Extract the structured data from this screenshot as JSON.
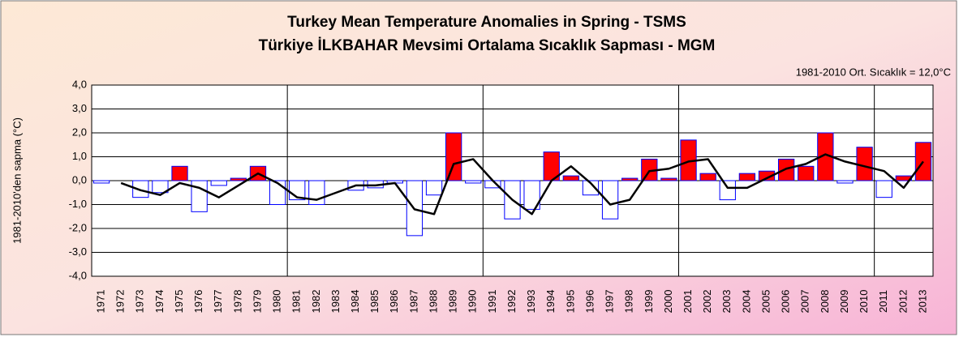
{
  "chart_data": {
    "type": "bar",
    "title": "Turkey Mean Temperature Anomalies in Spring - TSMS",
    "subtitle": "Türkiye İLKBAHAR Mevsimi Ortalama Sıcaklık Sapması - MGM",
    "annotation": "1981-2010 Ort. Sıcaklık = 12,0°C",
    "y_label": "1981-2010'den sapma (°C)",
    "categories": [
      "1971",
      "1972",
      "1973",
      "1974",
      "1975",
      "1976",
      "1977",
      "1978",
      "1979",
      "1980",
      "1981",
      "1982",
      "1983",
      "1984",
      "1985",
      "1986",
      "1987",
      "1988",
      "1989",
      "1990",
      "1991",
      "1992",
      "1993",
      "1994",
      "1995",
      "1996",
      "1997",
      "1998",
      "1999",
      "2000",
      "2001",
      "2002",
      "2003",
      "2004",
      "2005",
      "2006",
      "2007",
      "2008",
      "2009",
      "2010",
      "2011",
      "2012",
      "2013"
    ],
    "series": [
      {
        "type": "bar",
        "positive_color": "#ff0000",
        "negative_color": "#ffffff",
        "edge_color": "#0000ff",
        "values": [
          -0.1,
          0.0,
          -0.7,
          -0.5,
          0.6,
          -1.3,
          -0.2,
          0.1,
          0.6,
          -1.0,
          -0.8,
          -1.0,
          0.0,
          -0.4,
          -0.3,
          -0.1,
          -2.3,
          -0.6,
          2.0,
          -0.1,
          -0.3,
          -1.6,
          -1.2,
          1.2,
          0.2,
          -0.6,
          -1.6,
          0.1,
          0.9,
          0.1,
          1.7,
          0.3,
          -0.8,
          0.3,
          0.4,
          0.9,
          0.6,
          2.0,
          -0.1,
          1.4,
          -0.7,
          0.2,
          1.6
        ]
      },
      {
        "type": "line",
        "color": "#000000",
        "values": [
          null,
          -0.1,
          -0.4,
          -0.6,
          -0.1,
          -0.3,
          -0.7,
          -0.2,
          0.3,
          -0.1,
          -0.7,
          -0.8,
          -0.5,
          -0.2,
          -0.2,
          -0.1,
          -1.2,
          -1.4,
          0.7,
          0.9,
          0.0,
          -0.8,
          -1.4,
          0.0,
          0.6,
          -0.1,
          -1.0,
          -0.8,
          0.4,
          0.5,
          0.8,
          0.9,
          -0.3,
          -0.3,
          0.1,
          0.5,
          0.7,
          1.1,
          0.8,
          0.6,
          0.4,
          -0.3,
          0.8
        ]
      }
    ],
    "ylim": [
      -4,
      4
    ],
    "yticks": [
      {
        "value": -4,
        "label": "-4,0"
      },
      {
        "value": -3,
        "label": "-3,0"
      },
      {
        "value": -2,
        "label": "-2,0"
      },
      {
        "value": -1,
        "label": "-1,0"
      },
      {
        "value": 0,
        "label": "0,0"
      },
      {
        "value": 1,
        "label": "1,0"
      },
      {
        "value": 2,
        "label": "2,0"
      },
      {
        "value": 3,
        "label": "3,0"
      },
      {
        "value": 4,
        "label": "4,0"
      }
    ],
    "grid": true
  }
}
